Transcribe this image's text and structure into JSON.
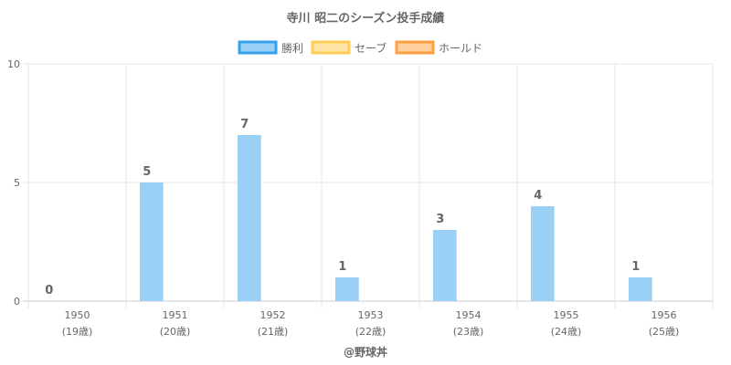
{
  "chart_data": {
    "type": "bar",
    "title": "寺川 昭二のシーズン投手成績",
    "categories": [
      "1950",
      "1951",
      "1952",
      "1953",
      "1954",
      "1955",
      "1956"
    ],
    "category_sublabels": [
      "(19歳)",
      "(20歳)",
      "(21歳)",
      "(22歳)",
      "(23歳)",
      "(24歳)",
      "(25歳)"
    ],
    "series": [
      {
        "name": "勝利",
        "values": [
          0,
          5,
          7,
          1,
          3,
          4,
          1
        ],
        "color": "#9ad0f5",
        "border": "#36a2eb"
      },
      {
        "name": "セーブ",
        "values": [
          0,
          0,
          0,
          0,
          0,
          0,
          0
        ],
        "color": "#ffe6a8",
        "border": "#ffcd56"
      },
      {
        "name": "ホールド",
        "values": [
          0,
          0,
          0,
          0,
          0,
          0,
          0
        ],
        "color": "#ffcf9f",
        "border": "#ff9f40"
      }
    ],
    "data_labels": [
      "0",
      "5",
      "7",
      "1",
      "3",
      "4",
      "1"
    ],
    "ylim": [
      0,
      10
    ],
    "yticks": [
      "0",
      "5",
      "10"
    ],
    "xlabel": "",
    "ylabel": "",
    "legend_position": "top",
    "grid": true,
    "credit": "@野球丼"
  }
}
